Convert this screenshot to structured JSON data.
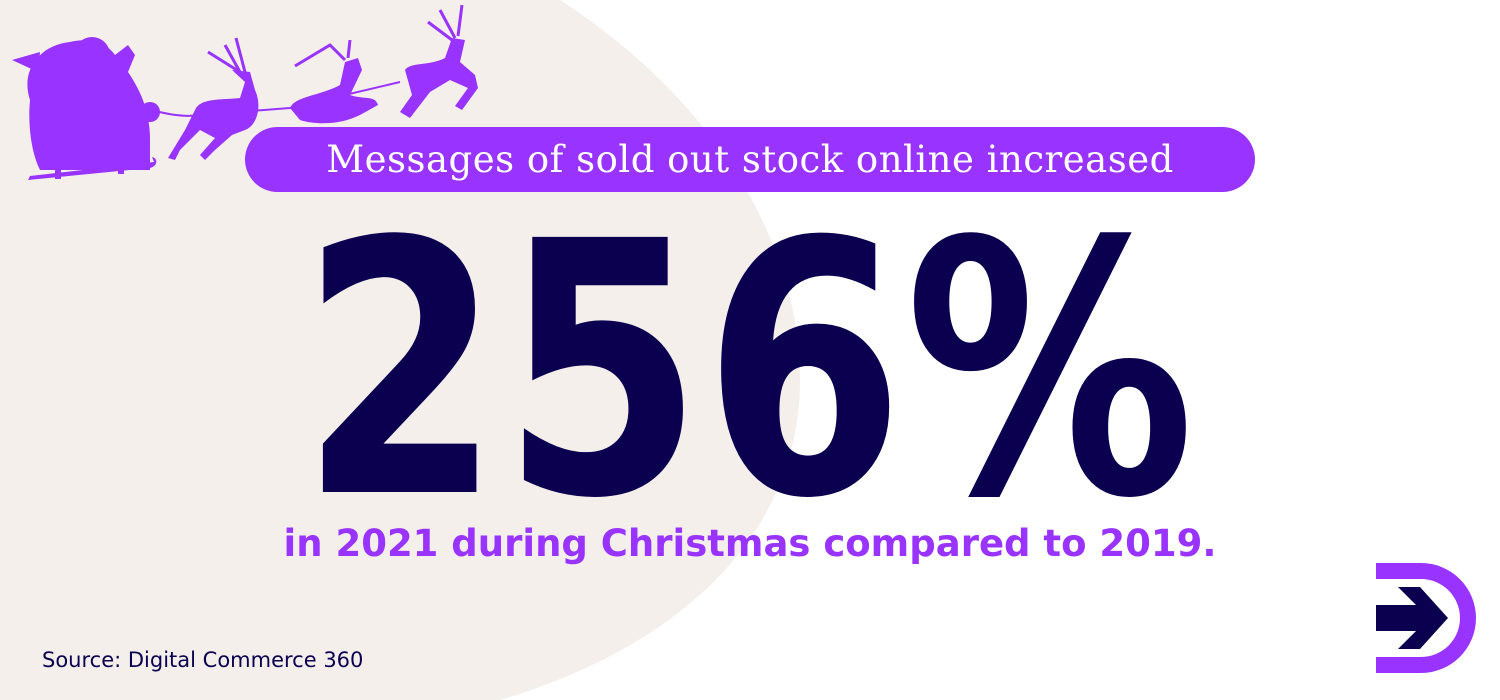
{
  "headline_pill": "Messages of sold out stock online increased",
  "stat_value": "256%",
  "subtitle": "in 2021 during Christmas compared to 2019.",
  "source": "Source: Digital Commerce 360",
  "decoration": "santa-sleigh-reindeer-silhouette",
  "colors": {
    "purple": "#9933ff",
    "navy": "#0b0050",
    "beige": "#f4efeb",
    "background": "#ffffff"
  }
}
